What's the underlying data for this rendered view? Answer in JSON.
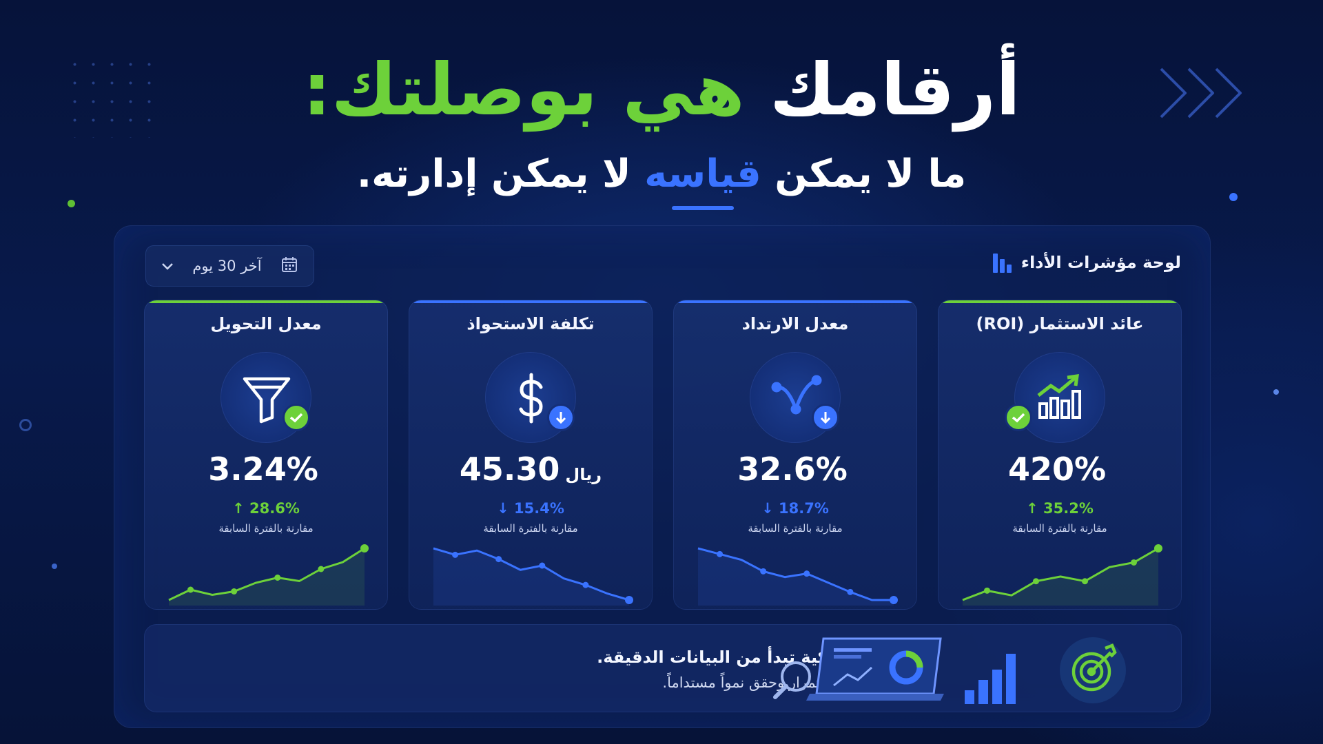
{
  "headline": {
    "part_white": "أرقامك",
    "part_green": "هي بوصلتك:"
  },
  "subline": {
    "part1": "ما لا يمكن",
    "highlight": "قياسه",
    "part2": "لا يمكن إدارته."
  },
  "dashboard": {
    "title": "لوحة مؤشرات الأداء",
    "date_range": "آخر 30 يوم"
  },
  "cards": [
    {
      "title": "عائد الاستثمار (ROI)",
      "value": "420%",
      "unit": "",
      "delta": "↑ 35.2%",
      "comparison": "مقارنة بالفترة السابقة",
      "accent": "#6dd13a",
      "icon": "bar-chart-trend-icon",
      "trend": [
        2,
        3,
        2.5,
        4,
        4.5,
        4,
        5.5,
        6,
        7.5
      ]
    },
    {
      "title": "معدل الارتداد",
      "value": "32.6%",
      "unit": "",
      "delta": "↓ 18.7%",
      "comparison": "مقارنة بالفترة السابقة",
      "accent": "#3a73ff",
      "icon": "bounce-arrow-icon",
      "trend": [
        7,
        6.5,
        6,
        5,
        4.5,
        4.8,
        4,
        3.2,
        2.5,
        2.5
      ]
    },
    {
      "title": "تكلفة الاستحواذ",
      "value": "45.30",
      "unit": "ريال",
      "delta": "↓ 15.4%",
      "comparison": "مقارنة بالفترة السابقة",
      "accent": "#3a73ff",
      "icon": "dollar-icon",
      "trend": [
        7,
        6.4,
        6.8,
        6,
        5,
        5.4,
        4.2,
        3.6,
        2.8,
        2.2
      ]
    },
    {
      "title": "معدل التحويل",
      "value": "3.24%",
      "unit": "",
      "delta": "↑ 28.6%",
      "comparison": "مقارنة بالفترة السابقة",
      "accent": "#6dd13a",
      "icon": "funnel-icon",
      "trend": [
        2,
        3.2,
        2.6,
        3,
        4,
        4.6,
        4.2,
        5.6,
        6.4,
        8
      ]
    }
  ],
  "footer": {
    "line1": "القرارات الذكية تبدأ من البيانات الدقيقة.",
    "line2": "تابع مؤشراتك باستمرار وحقق نمواً مستداماً."
  }
}
